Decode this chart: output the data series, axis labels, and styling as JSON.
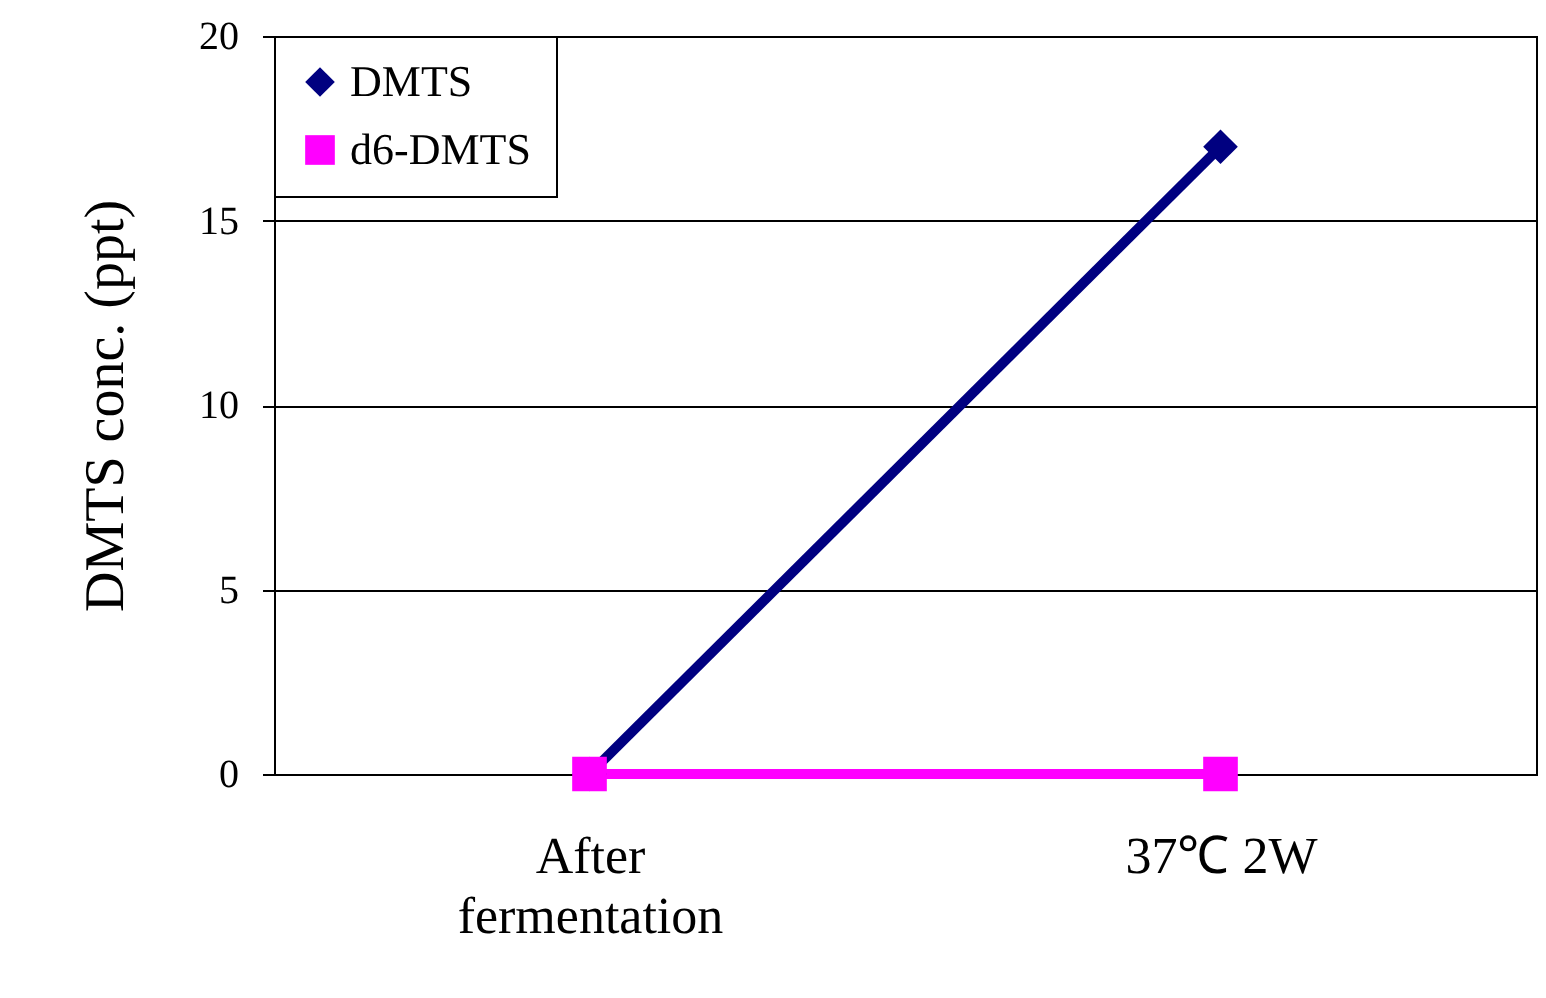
{
  "chart_data": {
    "type": "line",
    "ylabel": "DMTS conc. (ppt)",
    "categories": [
      "After fermentation",
      "37℃ 2W"
    ],
    "series": [
      {
        "name": "DMTS",
        "color": "#000080",
        "marker": "diamond",
        "values": [
          0,
          17
        ]
      },
      {
        "name": "d6-DMTS",
        "color": "#ff00ff",
        "marker": "square",
        "values": [
          0,
          0
        ]
      }
    ],
    "ylim": [
      0,
      20
    ],
    "yticks": [
      0,
      5,
      10,
      15,
      20
    ],
    "grid": "y",
    "legend": "top left",
    "line_style": "solid"
  }
}
